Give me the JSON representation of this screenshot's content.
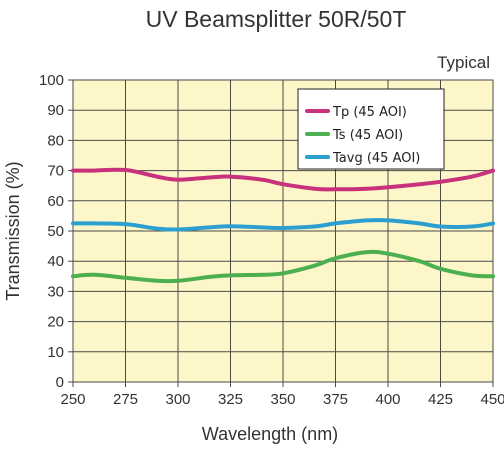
{
  "chart_data": {
    "type": "line",
    "title": "UV Beamsplitter 50R/50T",
    "annotation": "Typical",
    "xlabel": "Wavelength (nm)",
    "ylabel": "Transmission (%)",
    "xlim": [
      250,
      450
    ],
    "ylim": [
      0,
      100
    ],
    "xticks": [
      "250",
      "275",
      "300",
      "325",
      "350",
      "375",
      "400",
      "425",
      "450"
    ],
    "yticks": [
      "0",
      "10",
      "20",
      "30",
      "40",
      "50",
      "60",
      "70",
      "80",
      "90",
      "100"
    ],
    "grid": true,
    "legend_position": "top-right",
    "background_color": "#fdf6c8",
    "grid_color": "#4a4a4a",
    "series": [
      {
        "name": "Tp (45 AOI)",
        "color": "#c8317c",
        "x": [
          250,
          260,
          275,
          290,
          300,
          315,
          325,
          340,
          350,
          365,
          375,
          390,
          400,
          415,
          425,
          440,
          450
        ],
        "y": [
          70,
          70,
          70.2,
          68,
          67,
          67.7,
          68,
          67,
          65.5,
          64,
          63.8,
          64,
          64.5,
          65.5,
          66.3,
          68,
          70
        ]
      },
      {
        "name": "Ts (45 AOI)",
        "color": "#4caf50",
        "x": [
          250,
          260,
          275,
          290,
          300,
          315,
          325,
          340,
          350,
          365,
          375,
          390,
          400,
          415,
          425,
          440,
          450
        ],
        "y": [
          35,
          35.5,
          34.5,
          33.5,
          33.5,
          34.8,
          35.3,
          35.5,
          36,
          38.5,
          41,
          43,
          42.5,
          40,
          37.5,
          35.3,
          35
        ]
      },
      {
        "name": "Tavg (45 AOI)",
        "color": "#2a9fd0",
        "x": [
          250,
          260,
          275,
          290,
          300,
          315,
          325,
          340,
          350,
          365,
          375,
          390,
          400,
          415,
          425,
          440,
          450
        ],
        "y": [
          52.5,
          52.5,
          52.3,
          50.8,
          50.5,
          51.2,
          51.6,
          51.2,
          51,
          51.5,
          52.5,
          53.5,
          53.5,
          52.5,
          51.5,
          51.5,
          52.5
        ]
      }
    ]
  }
}
